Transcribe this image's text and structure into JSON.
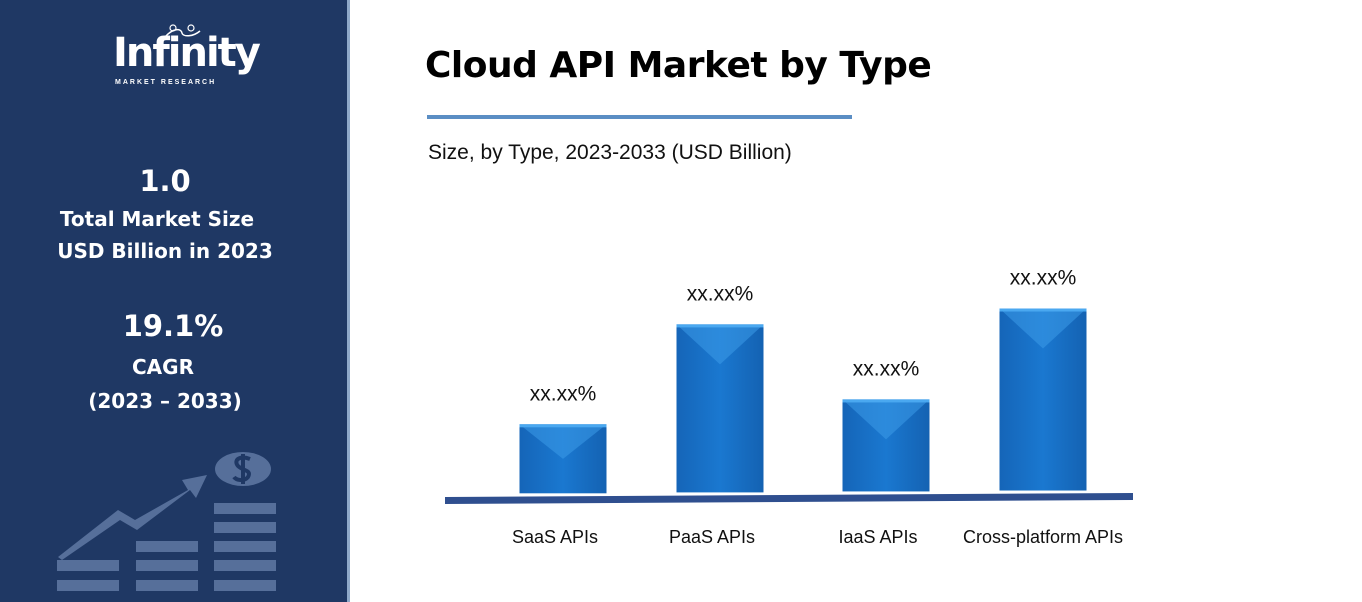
{
  "sidebar": {
    "logo_text": "Infinity",
    "logo_subtext": "MARKET RESEARCH",
    "market_size_value": "1.0",
    "market_size_label_1": "Total Market Size",
    "market_size_label_2": "USD Billion in 2023",
    "cagr_value": "19.1%",
    "cagr_label": "CAGR",
    "cagr_period": "(2023 – 2033)",
    "background_color": "#1f3864",
    "illustration_icons": [
      "growth-arrow-icon",
      "dollar-coin-icon",
      "bar-stack-icon"
    ]
  },
  "chart_data": {
    "type": "bar",
    "title": "Cloud API Market by Type",
    "subtitle": "Size, by Type, 2023-2033 (USD Billion)",
    "xlabel": "",
    "ylabel": "",
    "categories": [
      "SaaS APIs",
      "PaaS APIs",
      "IaaS APIs",
      "Cross-platform APIs"
    ],
    "values": [
      69,
      168,
      92,
      182
    ],
    "value_note": "relative bar heights; no y-axis scale printed",
    "data_labels": [
      "xx.xx%",
      "xx.xx%",
      "xx.xx%",
      "xx.xx%"
    ],
    "grid": false,
    "legend": "none",
    "bar_color": "#1a73c8",
    "axis_color": "#2f4f8f"
  }
}
